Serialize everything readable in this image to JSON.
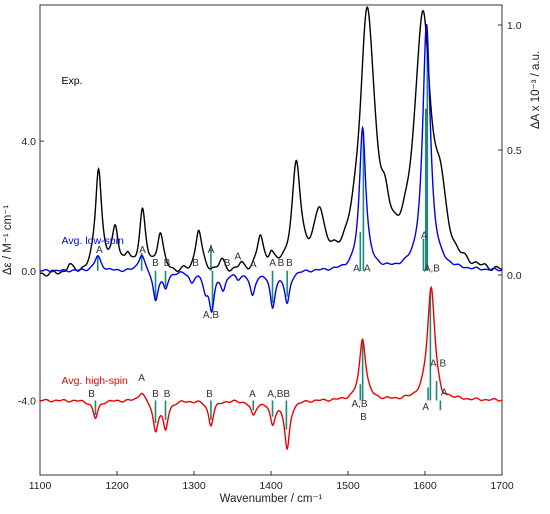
{
  "chart_data": {
    "type": "line",
    "xlabel": "Wavenumber / cm⁻¹",
    "xlim": [
      1100,
      1700
    ],
    "x_ticks": [
      "1100",
      "1200",
      "1300",
      "1400",
      "1500",
      "1600",
      "1700"
    ],
    "ylabel_left": "Δε / M⁻¹ cm⁻¹",
    "ylim_left": [
      -6.3,
      8.2
    ],
    "y_ticks_left": [
      "4.0",
      "0.0",
      "-4.0"
    ],
    "ylabel_right": "ΔA x 10⁻³ / a.u.",
    "ylim_right": [
      -0.8,
      1.08
    ],
    "y_ticks_right": [
      "1.0",
      "0.5",
      "0.0"
    ],
    "series": [
      {
        "name": "Exp.",
        "color": "#000000",
        "axis": "right",
        "baseline": 0.0,
        "peaks": [
          [
            1138,
            0.03,
            4
          ],
          [
            1176,
            0.42,
            5
          ],
          [
            1198,
            0.17,
            5
          ],
          [
            1214,
            0.05,
            4
          ],
          [
            1233,
            0.24,
            5
          ],
          [
            1256,
            0.15,
            5
          ],
          [
            1306,
            0.17,
            5
          ],
          [
            1336,
            0.04,
            5
          ],
          [
            1361,
            0.025,
            4
          ],
          [
            1386,
            0.13,
            5
          ],
          [
            1400,
            0.05,
            4
          ],
          [
            1433,
            0.41,
            7
          ],
          [
            1463,
            0.21,
            8
          ],
          [
            1525,
            1.02,
            12
          ],
          [
            1548,
            0.1,
            7
          ],
          [
            1597,
            1.0,
            13
          ],
          [
            1620,
            0.2,
            8
          ]
        ]
      },
      {
        "name": "Avg. low-spin",
        "color": "#0000ee",
        "axis": "left",
        "baseline": 0.0,
        "peaks": [
          [
            1175,
            0.45,
            5
          ],
          [
            1232,
            0.55,
            5
          ],
          [
            1250,
            -0.9,
            4
          ],
          [
            1263,
            -0.5,
            4
          ],
          [
            1297,
            -0.3,
            4
          ],
          [
            1315,
            -0.5,
            4
          ],
          [
            1323,
            -1.1,
            4
          ],
          [
            1338,
            -0.5,
            4
          ],
          [
            1357,
            -0.2,
            4
          ],
          [
            1376,
            -0.75,
            4
          ],
          [
            1402,
            -1.1,
            4
          ],
          [
            1421,
            -1.0,
            4
          ],
          [
            1519,
            4.4,
            5
          ],
          [
            1602,
            7.6,
            6
          ]
        ],
        "stick_color": "#1b8a7a",
        "sticks": [
          [
            1175,
            0.45
          ],
          [
            1232,
            0.55
          ],
          [
            1250,
            -0.9
          ],
          [
            1263,
            -0.5
          ],
          [
            1322,
            0.8
          ],
          [
            1324,
            -1.2
          ],
          [
            1402,
            -1.0
          ],
          [
            1421,
            -0.8
          ],
          [
            1516,
            1.2
          ],
          [
            1520,
            4.3
          ],
          [
            1598,
            1.0
          ],
          [
            1601,
            5.0
          ],
          [
            1603,
            7.4
          ]
        ],
        "annotations": [
          {
            "x": 1177,
            "y": 0.55,
            "text": "A"
          },
          {
            "x": 1233,
            "y": 0.55,
            "text": "A"
          },
          {
            "x": 1250,
            "y": 0.15,
            "text": "B"
          },
          {
            "x": 1265,
            "y": 0.15,
            "text": "B"
          },
          {
            "x": 1302,
            "y": 0.15,
            "text": "B"
          },
          {
            "x": 1322,
            "y": 0.55,
            "text": "A"
          },
          {
            "x": 1343,
            "y": 0.15,
            "text": "B"
          },
          {
            "x": 1357,
            "y": 0.35,
            "text": "A"
          },
          {
            "x": 1377,
            "y": 0.1,
            "text": "A"
          },
          {
            "x": 1402,
            "y": 0.15,
            "text": "A"
          },
          {
            "x": 1413,
            "y": 0.15,
            "text": "B"
          },
          {
            "x": 1424,
            "y": 0.15,
            "text": "B"
          },
          {
            "x": 1322,
            "y": -1.45,
            "text": "A,B"
          },
          {
            "x": 1511,
            "y": -0.02,
            "text": "A"
          },
          {
            "x": 1525,
            "y": -0.02,
            "text": "A"
          },
          {
            "x": 1599,
            "y": 1.0,
            "text": "A"
          },
          {
            "x": 1609,
            "y": -0.02,
            "text": "A,B"
          }
        ]
      },
      {
        "name": "Avg. high-spin",
        "color": "#ee0000",
        "axis": "left",
        "baseline": -4.0,
        "peaks": [
          [
            1172,
            -0.55,
            4
          ],
          [
            1232,
            0.3,
            5
          ],
          [
            1250,
            -0.9,
            4
          ],
          [
            1263,
            -0.85,
            4
          ],
          [
            1322,
            -0.75,
            4
          ],
          [
            1377,
            -0.45,
            4
          ],
          [
            1402,
            -0.7,
            4
          ],
          [
            1421,
            -1.5,
            4
          ],
          [
            1519,
            1.9,
            5
          ],
          [
            1608,
            3.5,
            6
          ],
          [
            1622,
            -0.25,
            4
          ]
        ],
        "stick_color": "#1b8a7a",
        "sticks": [
          [
            1172,
            -0.45
          ],
          [
            1250,
            -0.7
          ],
          [
            1263,
            -0.6
          ],
          [
            1322,
            -0.6
          ],
          [
            1377,
            -0.3
          ],
          [
            1402,
            -0.5
          ],
          [
            1420,
            -0.9
          ],
          [
            1516,
            0.5
          ],
          [
            1519,
            1.8
          ],
          [
            1604,
            0.4
          ],
          [
            1607,
            3.4
          ],
          [
            1615,
            0.6
          ],
          [
            1620,
            -0.3
          ]
        ],
        "annotations": [
          {
            "x": 1167,
            "y": 0.1,
            "text": "B"
          },
          {
            "x": 1232,
            "y": 0.6,
            "text": "A"
          },
          {
            "x": 1250,
            "y": 0.1,
            "text": "B"
          },
          {
            "x": 1265,
            "y": 0.1,
            "text": "B"
          },
          {
            "x": 1320,
            "y": 0.1,
            "text": "B"
          },
          {
            "x": 1376,
            "y": 0.1,
            "text": "A"
          },
          {
            "x": 1410,
            "y": 0.1,
            "text": "A,BB"
          },
          {
            "x": 1515,
            "y": -0.2,
            "text": "A,B"
          },
          {
            "x": 1520,
            "y": -0.6,
            "text": "B"
          },
          {
            "x": 1601,
            "y": -0.3,
            "text": "A"
          },
          {
            "x": 1617,
            "y": 1.05,
            "text": "A,B"
          },
          {
            "x": 1625,
            "y": 0.15,
            "text": "A"
          }
        ]
      }
    ],
    "grid": false,
    "legend": "none"
  }
}
